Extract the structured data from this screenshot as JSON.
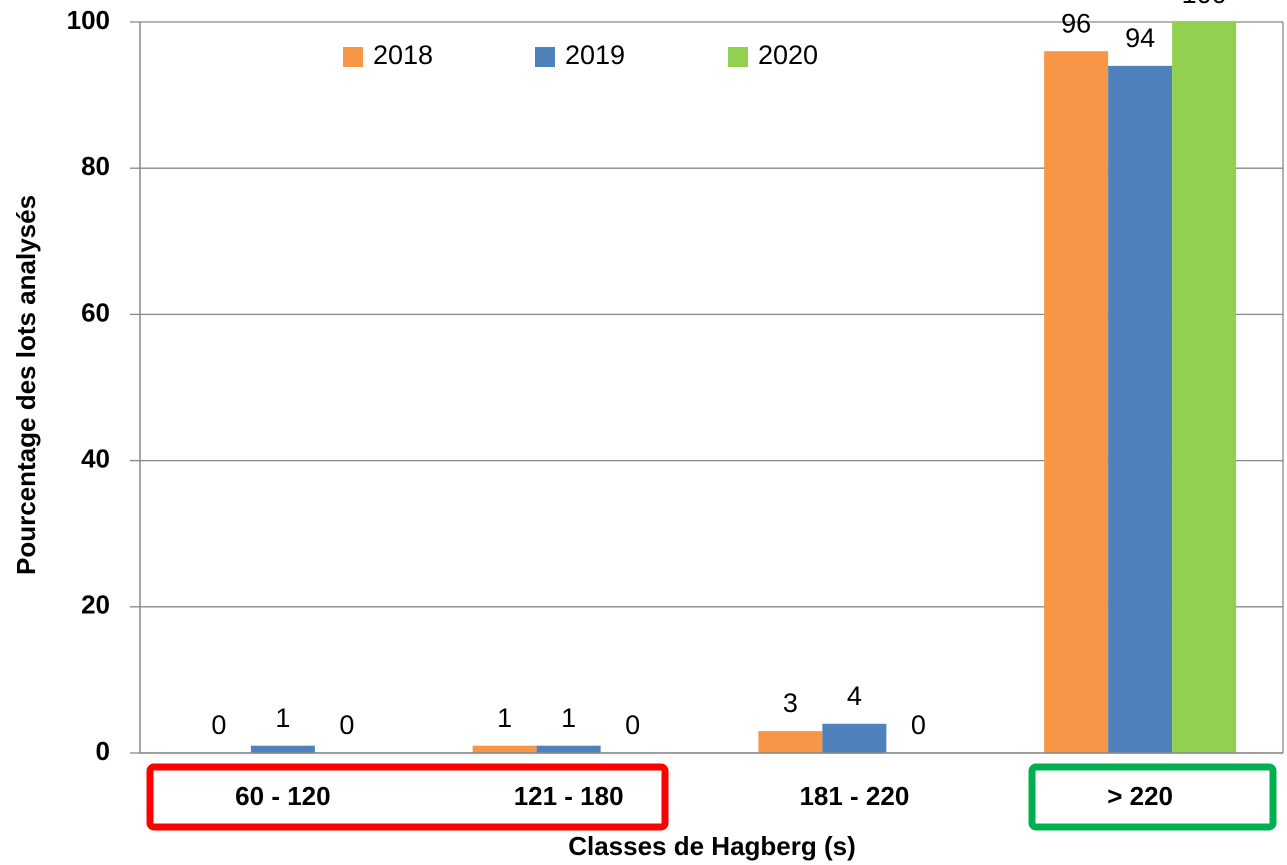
{
  "chart_data": {
    "type": "bar",
    "x_label": "Classes de Hagberg (s)",
    "y_label": "Pourcentage des lots analysés",
    "categories": [
      "60 - 120",
      "121 - 180",
      "181 - 220",
      "> 220"
    ],
    "series": [
      {
        "name": "2018",
        "color": "#f79646",
        "values": [
          0,
          1,
          3,
          96
        ]
      },
      {
        "name": "2019",
        "color": "#4f81bd",
        "values": [
          1,
          1,
          4,
          94
        ]
      },
      {
        "name": "2020",
        "color": "#92d050",
        "values": [
          0,
          0,
          0,
          100
        ]
      }
    ],
    "ylim": [
      0,
      100
    ],
    "yticks": [
      0,
      20,
      40,
      60,
      80,
      100
    ],
    "grid": true,
    "legend": "top"
  }
}
